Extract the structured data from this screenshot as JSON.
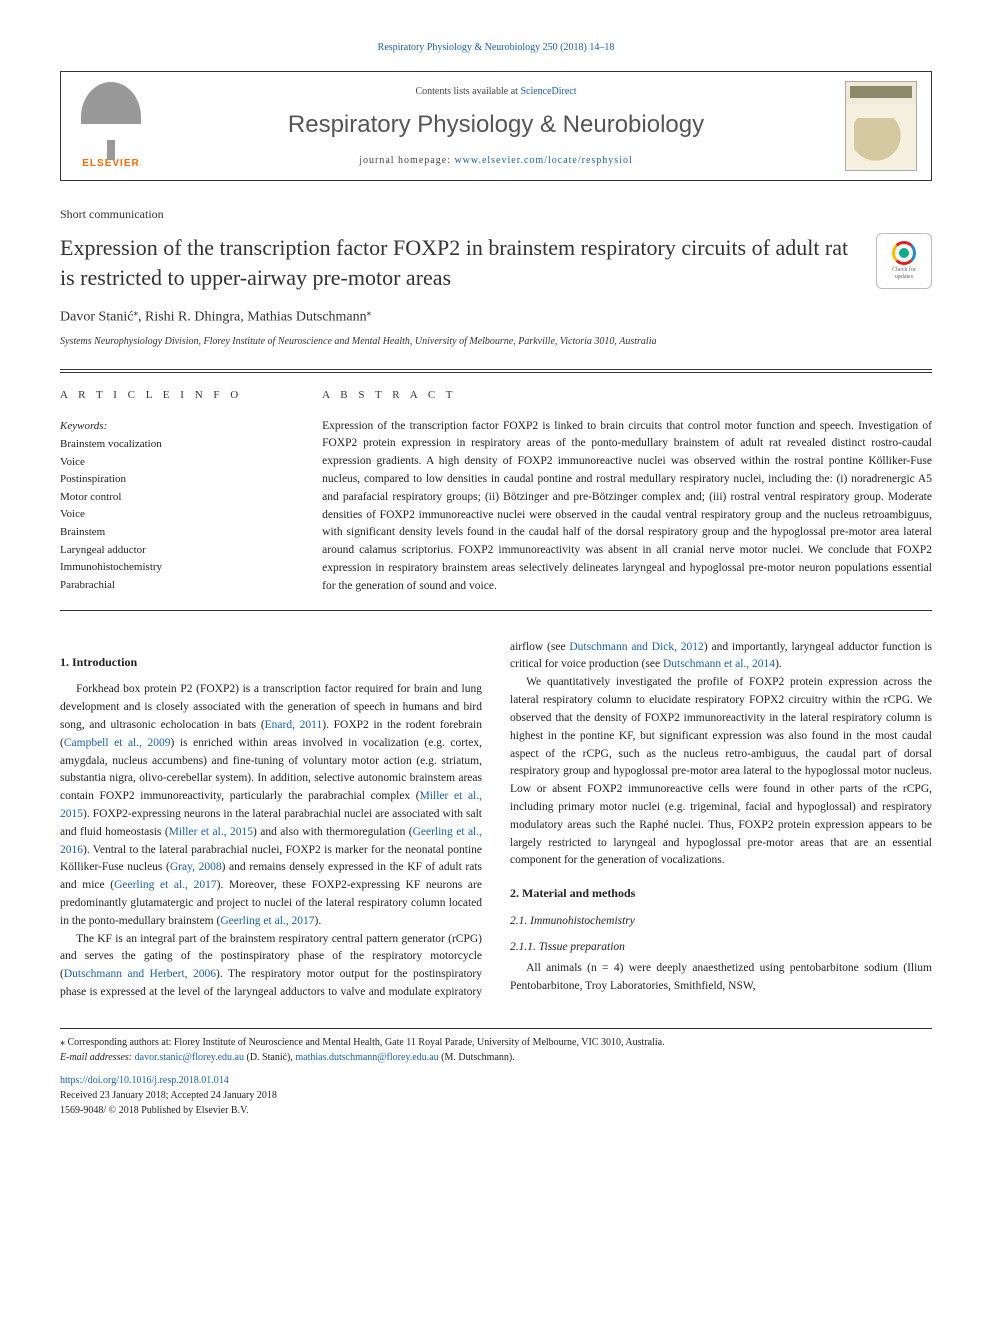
{
  "running_head": {
    "journal": "Respiratory Physiology & Neurobiology",
    "cite": "250 (2018) 14–18"
  },
  "masthead": {
    "contents_prefix": "Contents lists available at ",
    "contents_link": "ScienceDirect",
    "journal_name": "Respiratory Physiology & Neurobiology",
    "homepage_prefix": "journal homepage: ",
    "homepage_link": "www.elsevier.com/locate/resphysiol",
    "publisher_word": "ELSEVIER"
  },
  "article_type": "Short communication",
  "title": "Expression of the transcription factor FOXP2 in brainstem respiratory circuits of adult rat is restricted to upper-airway pre-motor areas",
  "crossmark": {
    "line1": "Check for",
    "line2": "updates"
  },
  "authors_html": "Davor Stanić<sup>⁎</sup>, Rishi R. Dhingra, Mathias Dutschmann<sup>⁎</sup>",
  "affiliation": "Systems Neurophysiology Division, Florey Institute of Neuroscience and Mental Health, University of Melbourne, Parkville, Victoria 3010, Australia",
  "info": {
    "head": "A R T I C L E  I N F O",
    "kw_label": "Keywords:",
    "keywords": [
      "Brainstem vocalization",
      "Voice",
      "Postinspiration",
      "Motor control",
      "Voice",
      "Brainstem",
      "Laryngeal adductor",
      "Immunohistochemistry",
      "Parabrachial"
    ]
  },
  "abstract": {
    "head": "A B S T R A C T",
    "text": "Expression of the transcription factor FOXP2 is linked to brain circuits that control motor function and speech. Investigation of FOXP2 protein expression in respiratory areas of the ponto-medullary brainstem of adult rat revealed distinct rostro-caudal expression gradients. A high density of FOXP2 immunoreactive nuclei was observed within the rostral pontine Kölliker-Fuse nucleus, compared to low densities in caudal pontine and rostral medullary respiratory nuclei, including the: (i) noradrenergic A5 and parafacial respiratory groups; (ii) Bötzinger and pre-Bötzinger complex and; (iii) rostral ventral respiratory group. Moderate densities of FOXP2 immunoreactive nuclei were observed in the caudal ventral respiratory group and the nucleus retroambiguus, with significant density levels found in the caudal half of the dorsal respiratory group and the hypoglossal pre-motor area lateral around calamus scriptorius. FOXP2 immunoreactivity was absent in all cranial nerve motor nuclei. We conclude that FOXP2 expression in respiratory brainstem areas selectively delineates laryngeal and hypoglossal pre-motor neuron populations essential for the generation of sound and voice."
  },
  "body": {
    "s1": {
      "head": "1. Introduction",
      "p1_a": "Forkhead box protein P2 (FOXP2) is a transcription factor required for brain and lung development and is closely associated with the generation of speech in humans and bird song, and ultrasonic echolocation in bats (",
      "p1_l1": "Enard, 2011",
      "p1_b": "). FOXP2 in the rodent forebrain (",
      "p1_l2": "Campbell et al., 2009",
      "p1_c": ") is enriched within areas involved in vocalization (e.g. cortex, amygdala, nucleus accumbens) and fine-tuning of voluntary motor action (e.g. striatum, substantia nigra, olivo-cerebellar system). In addition, selective autonomic brainstem areas contain FOXP2 immunoreactivity, particularly the parabrachial complex (",
      "p1_l3": "Miller et al., 2015",
      "p1_d": "). FOXP2-expressing neurons in the lateral parabrachial nuclei are associated with salt and fluid homeostasis (",
      "p1_l4": "Miller et al., 2015",
      "p1_e": ") and also with thermoregulation (",
      "p1_l5": "Geerling et al., 2016",
      "p1_f": "). Ventral to the lateral parabrachial nuclei, FOXP2 is marker for the neonatal pontine Kölliker-Fuse nucleus (",
      "p1_l6": "Gray, 2008",
      "p1_g": ") and remains densely expressed in the KF of adult rats and mice (",
      "p1_l7": "Geerling et al., 2017",
      "p1_h": "). Moreover, these FOXP2-expressing KF neurons are predominantly glutamatergic and project to nuclei of the lateral respiratory column located in the ponto-medullary brainstem (",
      "p1_l8": "Geerling et al., 2017",
      "p1_i": ").",
      "p2_a": "The KF is an integral part of the brainstem respiratory central pattern generator (rCPG) and serves the gating of the postinspiratory phase of the respiratory motorcycle (",
      "p2_l1": "Dutschmann and Herbert, 2006",
      "p2_b": "). The respiratory motor output for the postinspiratory phase is expressed at the level of the laryngeal adductors to valve and modulate expiratory airflow (see ",
      "p2_l2": "Dutschmann and Dick, 2012",
      "p2_c": ") and importantly, laryngeal adductor function is critical for voice production (see ",
      "p2_l3": "Dutschmann et al., 2014",
      "p2_d": ").",
      "p3": "We quantitatively investigated the profile of FOXP2 protein expression across the lateral respiratory column to elucidate respiratory FOPX2 circuitry within the rCPG. We observed that the density of FOXP2 immunoreactivity in the lateral respiratory column is highest in the pontine KF, but significant expression was also found in the most caudal aspect of the rCPG, such as the nucleus retro-ambiguus, the caudal part of dorsal respiratory group and hypoglossal pre-motor area lateral to the hypoglossal motor nucleus. Low or absent FOXP2 immunoreactive cells were found in other parts of the rCPG, including primary motor nuclei (e.g. trigeminal, facial and hypoglossal) and respiratory modulatory areas such the Raphé nuclei. Thus, FOXP2 protein expression appears to be largely restricted to laryngeal and hypoglossal pre-motor areas that are an essential component for the generation of vocalizations."
    },
    "s2": {
      "head": "2. Material and methods",
      "sub1": "2.1. Immunohistochemistry",
      "sub2": "2.1.1. Tissue preparation",
      "p1": "All animals (n = 4) were deeply anaesthetized using pentobarbitone sodium (Ilium Pentobarbitone, Troy Laboratories, Smithfield, NSW,"
    }
  },
  "footnotes": {
    "corr": "⁎ Corresponding authors at: Florey Institute of Neuroscience and Mental Health, Gate 11 Royal Parade, University of Melbourne, VIC 3010, Australia.",
    "email_label": "E-mail addresses: ",
    "email1": "davor.stanic@florey.edu.au",
    "email1_who": " (D. Stanić), ",
    "email2": "mathias.dutschmann@florey.edu.au",
    "email2_who": " (M. Dutschmann)."
  },
  "doi": {
    "link": "https://doi.org/10.1016/j.resp.2018.01.014",
    "received": "Received 23 January 2018; Accepted 24 January 2018",
    "issn": "1569-9048/ © 2018 Published by Elsevier B.V."
  },
  "colors": {
    "link": "#1a5faa",
    "rule": "#333333",
    "elsevier": "#ff6a00"
  }
}
